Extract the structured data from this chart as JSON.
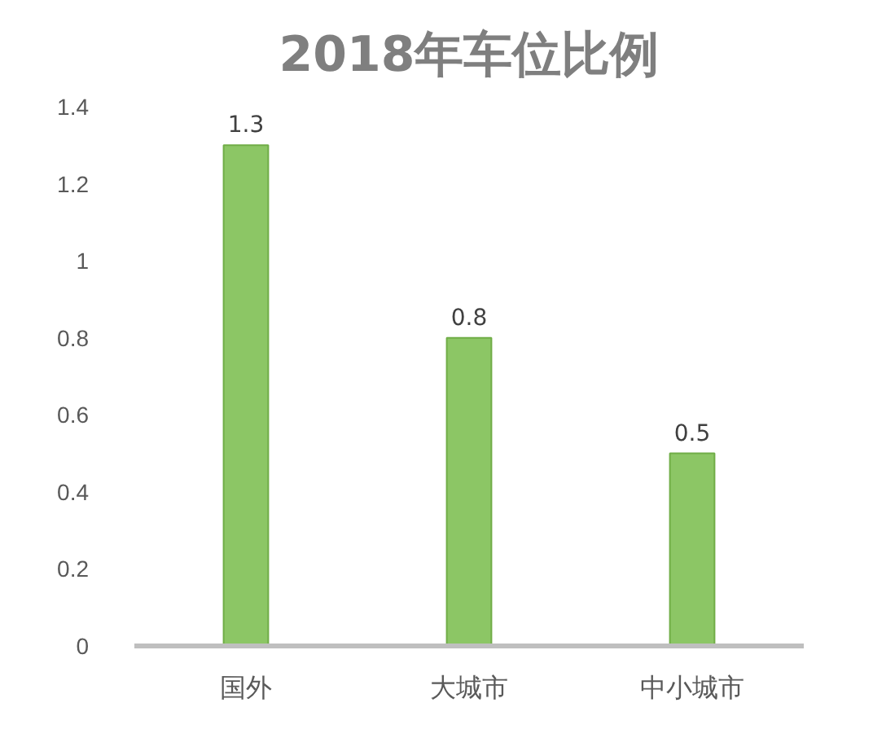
{
  "chart_data": {
    "type": "bar",
    "title": "2018年车位比例",
    "categories": [
      "国外",
      "大城市",
      "中小城市"
    ],
    "values": [
      1.3,
      0.8,
      0.5
    ],
    "color": "#8cc665",
    "ylim": [
      0,
      1.4
    ],
    "yticks": [
      0,
      0.2,
      0.4,
      0.6,
      0.8,
      1,
      1.2,
      1.4
    ],
    "data_labels": true
  }
}
